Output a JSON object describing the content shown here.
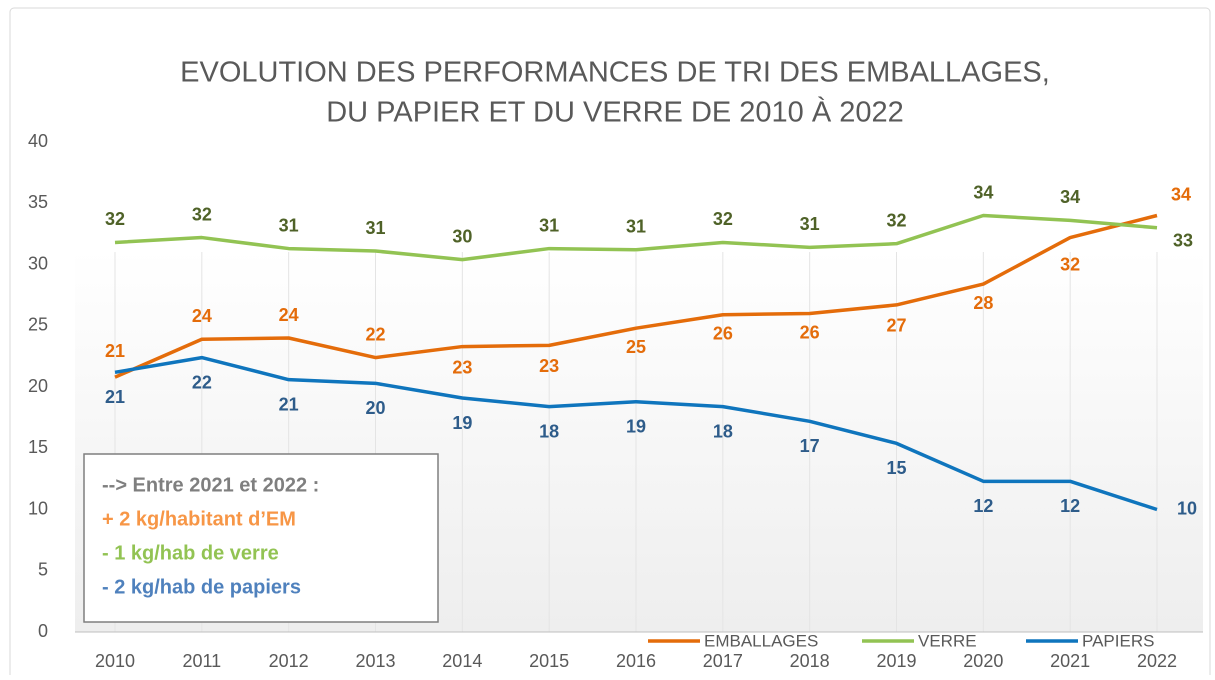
{
  "chart_data": {
    "type": "line",
    "title": [
      "EVOLUTION DES PERFORMANCES DE TRI DES EMBALLAGES,",
      "DU PAPIER ET DU VERRE DE 2010 À 2022"
    ],
    "categories": [
      "2010",
      "2011",
      "2012",
      "2013",
      "2014",
      "2015",
      "2016",
      "2017",
      "2018",
      "2019",
      "2020",
      "2021",
      "2022"
    ],
    "series": [
      {
        "name": "EMBALLAGES",
        "color": "#e46c0a",
        "values": [
          20.8,
          23.9,
          24.0,
          22.4,
          23.3,
          23.4,
          24.8,
          25.9,
          26.0,
          26.7,
          28.4,
          32.2,
          34.0
        ],
        "value_labels": [
          "21",
          "24",
          "24",
          "22",
          "23",
          "23",
          "25",
          "26",
          "26",
          "27",
          "28",
          "32",
          "34"
        ]
      },
      {
        "name": "VERRE",
        "color": "#92c353",
        "values": [
          31.8,
          32.2,
          31.3,
          31.1,
          30.4,
          31.3,
          31.2,
          31.8,
          31.4,
          31.7,
          34.0,
          33.6,
          33.0
        ],
        "value_labels": [
          "32",
          "32",
          "31",
          "31",
          "30",
          "31",
          "31",
          "32",
          "31",
          "32",
          "34",
          "34",
          "33"
        ]
      },
      {
        "name": "PAPIERS",
        "color": "#0f75bd",
        "values": [
          21.2,
          22.4,
          20.6,
          20.3,
          19.1,
          18.4,
          18.8,
          18.4,
          17.2,
          15.4,
          12.3,
          12.3,
          10.0
        ],
        "value_labels": [
          "21",
          "22",
          "21",
          "20",
          "19",
          "18",
          "19",
          "18",
          "17",
          "15",
          "12",
          "12",
          "10"
        ]
      }
    ],
    "label_colors": [
      "#e46c0a",
      "#4f6228",
      "#2e5c8a"
    ],
    "ylim": [
      0,
      40
    ],
    "yticks": [
      0,
      5,
      10,
      15,
      20,
      25,
      30,
      35,
      40
    ],
    "grid": "x",
    "legend": "bottom-right",
    "annotation": [
      {
        "text": "--> Entre 2021 et 2022 :",
        "color": "#7f7f7f"
      },
      {
        "text": "+ 2 kg/habitant d’EM",
        "color": "#f79646"
      },
      {
        "text": "- 1 kg/hab de verre",
        "color": "#92c353"
      },
      {
        "text": "- 2 kg/hab de papiers",
        "color": "#4f81bd"
      }
    ]
  }
}
